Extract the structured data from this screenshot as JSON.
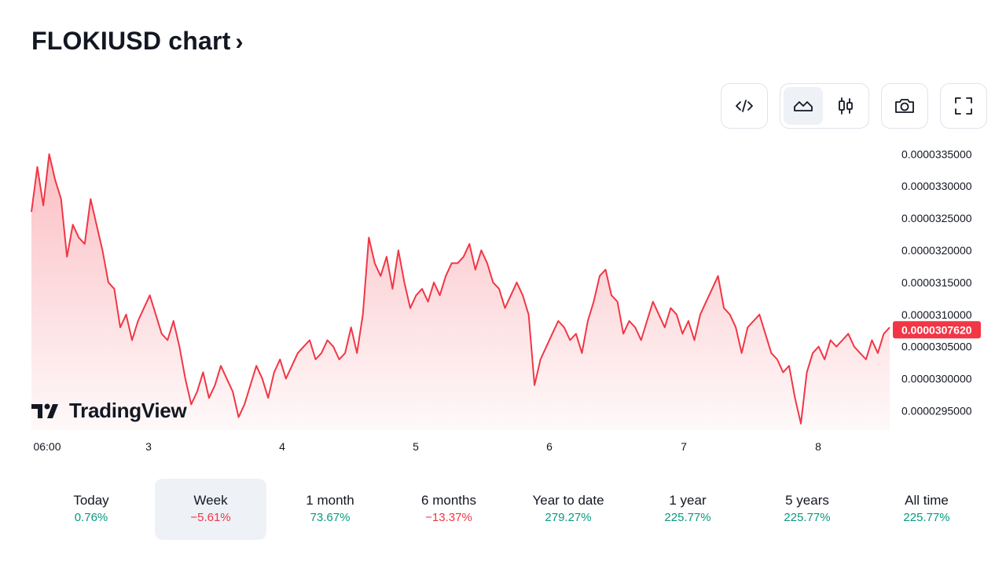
{
  "header": {
    "title": "FLOKIUSD chart",
    "chevron": "›"
  },
  "toolbar": {
    "embed_icon": "code-icon",
    "chart_types": [
      {
        "icon": "area-chart-icon",
        "active": true
      },
      {
        "icon": "candlestick-icon",
        "active": false
      }
    ],
    "snapshot_icon": "camera-icon",
    "fullscreen_icon": "fullscreen-icon"
  },
  "logo": {
    "text": "TradingView"
  },
  "colors": {
    "line": "#f23645",
    "positive": "#089981",
    "negative": "#f23645",
    "active_bg": "#eef1f6"
  },
  "chart_data": {
    "type": "area",
    "x_ticks": [
      "06:00",
      "3",
      "4",
      "5",
      "6",
      "7",
      "8"
    ],
    "y_ticks": [
      "0.0000335000",
      "0.0000330000",
      "0.0000325000",
      "0.0000320000",
      "0.0000315000",
      "0.0000310000",
      "0.0000305000",
      "0.0000300000",
      "0.0000295000"
    ],
    "ylim": [
      2.92e-05,
      3.37e-05
    ],
    "last_price": "0.0000307620",
    "series": [
      {
        "values": [
          3.26e-05,
          3.33e-05,
          3.27e-05,
          3.35e-05,
          3.31e-05,
          3.28e-05,
          3.19e-05,
          3.24e-05,
          3.22e-05,
          3.21e-05,
          3.28e-05,
          3.24e-05,
          3.2e-05,
          3.15e-05,
          3.14e-05,
          3.08e-05,
          3.1e-05,
          3.06e-05,
          3.09e-05,
          3.11e-05,
          3.13e-05,
          3.1e-05,
          3.07e-05,
          3.06e-05,
          3.09e-05,
          3.05e-05,
          3e-05,
          2.96e-05,
          2.98e-05,
          3.01e-05,
          2.97e-05,
          2.99e-05,
          3.02e-05,
          3e-05,
          2.98e-05,
          2.94e-05,
          2.96e-05,
          2.99e-05,
          3.02e-05,
          3e-05,
          2.97e-05,
          3.01e-05,
          3.03e-05,
          3e-05,
          3.02e-05,
          3.04e-05,
          3.05e-05,
          3.06e-05,
          3.03e-05,
          3.04e-05,
          3.06e-05,
          3.05e-05,
          3.03e-05,
          3.04e-05,
          3.08e-05,
          3.04e-05,
          3.1e-05,
          3.22e-05,
          3.18e-05,
          3.16e-05,
          3.19e-05,
          3.14e-05,
          3.2e-05,
          3.15e-05,
          3.11e-05,
          3.13e-05,
          3.14e-05,
          3.12e-05,
          3.15e-05,
          3.13e-05,
          3.16e-05,
          3.18e-05,
          3.18e-05,
          3.19e-05,
          3.21e-05,
          3.17e-05,
          3.2e-05,
          3.18e-05,
          3.15e-05,
          3.14e-05,
          3.11e-05,
          3.13e-05,
          3.15e-05,
          3.13e-05,
          3.1e-05,
          2.99e-05,
          3.03e-05,
          3.05e-05,
          3.07e-05,
          3.09e-05,
          3.08e-05,
          3.06e-05,
          3.07e-05,
          3.04e-05,
          3.09e-05,
          3.12e-05,
          3.16e-05,
          3.17e-05,
          3.13e-05,
          3.12e-05,
          3.07e-05,
          3.09e-05,
          3.08e-05,
          3.06e-05,
          3.09e-05,
          3.12e-05,
          3.1e-05,
          3.08e-05,
          3.11e-05,
          3.1e-05,
          3.07e-05,
          3.09e-05,
          3.06e-05,
          3.1e-05,
          3.12e-05,
          3.14e-05,
          3.16e-05,
          3.11e-05,
          3.1e-05,
          3.08e-05,
          3.04e-05,
          3.08e-05,
          3.09e-05,
          3.1e-05,
          3.07e-05,
          3.04e-05,
          3.03e-05,
          3.01e-05,
          3.02e-05,
          2.97e-05,
          2.93e-05,
          3.01e-05,
          3.04e-05,
          3.05e-05,
          3.03e-05,
          3.06e-05,
          3.05e-05,
          3.06e-05,
          3.07e-05,
          3.05e-05,
          3.04e-05,
          3.03e-05,
          3.06e-05,
          3.04e-05,
          3.07e-05,
          3.08e-05
        ]
      }
    ],
    "grid": false,
    "legend": "none"
  },
  "periods": [
    {
      "label": "Today",
      "value": "0.76%",
      "dir": "pos",
      "active": false
    },
    {
      "label": "Week",
      "value": "−5.61%",
      "dir": "neg",
      "active": true
    },
    {
      "label": "1 month",
      "value": "73.67%",
      "dir": "pos",
      "active": false
    },
    {
      "label": "6 months",
      "value": "−13.37%",
      "dir": "neg",
      "active": false
    },
    {
      "label": "Year to date",
      "value": "279.27%",
      "dir": "pos",
      "active": false
    },
    {
      "label": "1 year",
      "value": "225.77%",
      "dir": "pos",
      "active": false
    },
    {
      "label": "5 years",
      "value": "225.77%",
      "dir": "pos",
      "active": false
    },
    {
      "label": "All time",
      "value": "225.77%",
      "dir": "pos",
      "active": false
    }
  ]
}
